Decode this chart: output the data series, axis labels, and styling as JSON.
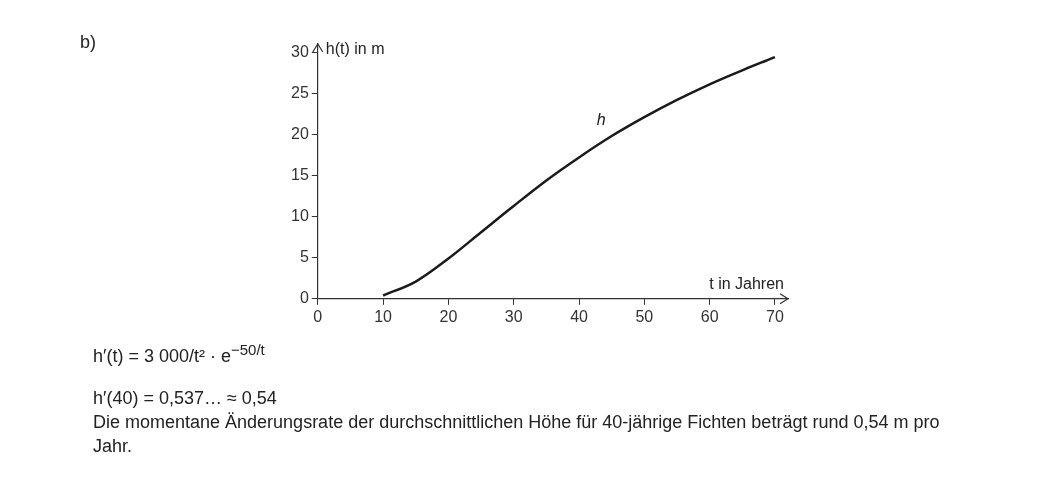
{
  "chart_data": {
    "type": "line",
    "title": "b)",
    "xlabel": "t in Jahren",
    "ylabel": "h(t) in m",
    "x": [
      10,
      15,
      20,
      25,
      30,
      35,
      40,
      45,
      50,
      55,
      60,
      65,
      70
    ],
    "series": [
      {
        "name": "h",
        "color": "#1a1a1a",
        "values": [
          0.4,
          2.1,
          4.9,
          8.1,
          11.3,
          14.4,
          17.2,
          19.8,
          22.1,
          24.2,
          26.1,
          27.8,
          29.4
        ]
      }
    ],
    "xlim": [
      0,
      72
    ],
    "xticks": [
      0,
      10,
      20,
      30,
      40,
      50,
      60,
      70
    ],
    "ylim": [
      0,
      31
    ],
    "yticks": [
      0,
      5,
      10,
      15,
      20,
      25,
      30
    ],
    "grid": false,
    "legend": false,
    "marker": "none",
    "line_style": "solid",
    "annotations": [
      "h′(t) = 3 000/t² · e$^{−50/t}$",
      "h′(40) = 0,537… ≈ 0,54",
      "Die momentane Änderungsrate der durchschnittlichen Höhe für 40-jährige Fichten beträgt rund 0,54 m pro Jahr."
    ]
  }
}
